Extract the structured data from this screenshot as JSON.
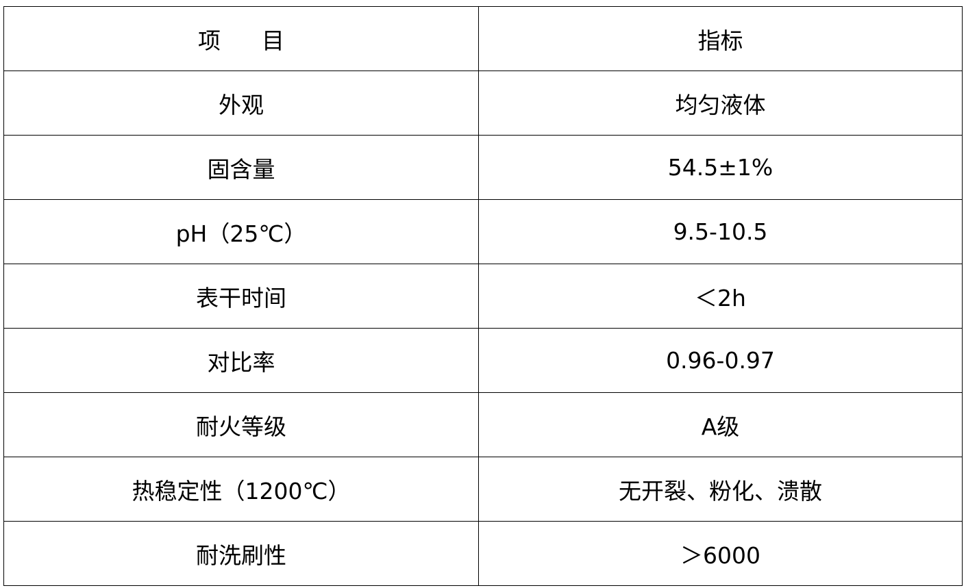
{
  "table": {
    "header": {
      "col1_a": "项",
      "col1_b": "目",
      "col2": "指标"
    },
    "rows": [
      {
        "item": "外观",
        "value": "均匀液体"
      },
      {
        "item": "固含量",
        "value": "54.5±1%"
      },
      {
        "item": "pH（25℃）",
        "value": "9.5-10.5"
      },
      {
        "item": "表干时间",
        "value": "＜2h"
      },
      {
        "item": "对比率",
        "value": "0.96-0.97"
      },
      {
        "item": "耐火等级",
        "value": "A级"
      },
      {
        "item": "热稳定性（1200℃）",
        "value": "无开裂、粉化、溃散"
      },
      {
        "item": "耐洗刷性",
        "value": "＞6000"
      }
    ]
  }
}
